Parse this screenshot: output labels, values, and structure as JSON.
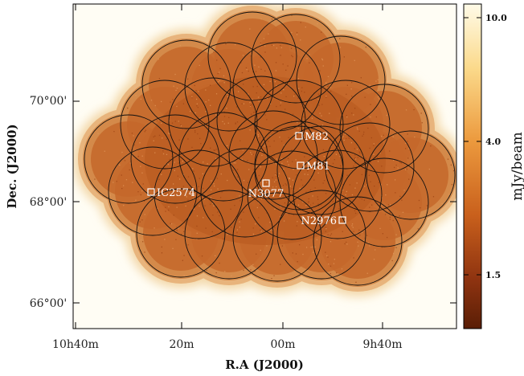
{
  "figure": {
    "x_axis": {
      "title": "R.A (J2000)",
      "ticks": [
        "10h40m",
        "20m",
        "00m",
        "9h40m"
      ]
    },
    "y_axis": {
      "title": "Dec. (J2000)",
      "ticks": [
        "70°00'",
        "68°00'",
        "66°00'"
      ]
    },
    "colorbar": {
      "title": "mJy/beam",
      "ticks": [
        "10.0",
        "4.0",
        "1.5"
      ],
      "colors": [
        "#fffbe8",
        "#fbd98a",
        "#ec9a3e",
        "#c9601c",
        "#8e3310",
        "#5a1e06"
      ]
    },
    "sources": [
      {
        "label": "M82"
      },
      {
        "label": "M81"
      },
      {
        "label": "N3077"
      },
      {
        "label": "IC2574"
      },
      {
        "label": "N2976"
      }
    ],
    "pointings_count_note": ""
  }
}
